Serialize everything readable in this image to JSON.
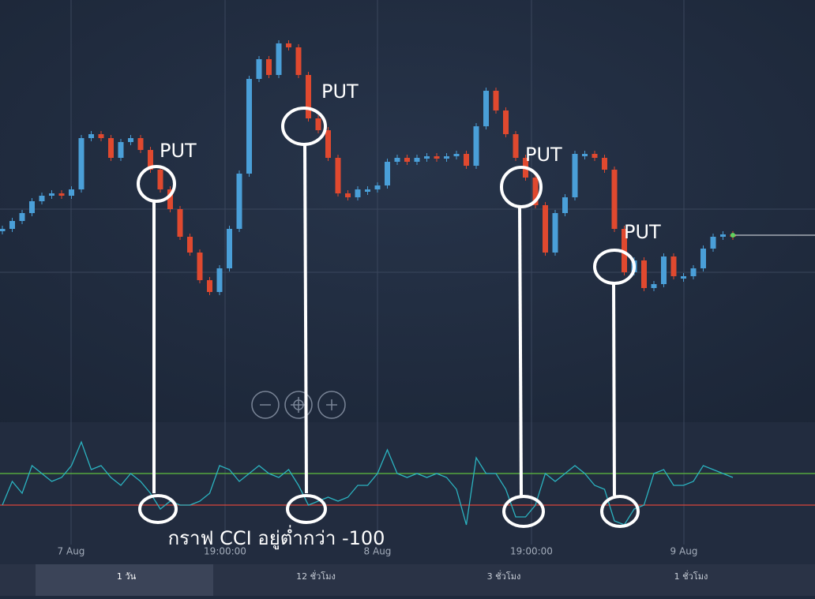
{
  "chart_data": {
    "type": "candlestick",
    "price": {
      "values": [
        110,
        120,
        130,
        145,
        152,
        155,
        152,
        160,
        225,
        230,
        225,
        200,
        220,
        225,
        210,
        185,
        160,
        135,
        100,
        80,
        45,
        30,
        60,
        110,
        180,
        300,
        325,
        305,
        345,
        340,
        305,
        250,
        235,
        200,
        155,
        150,
        160,
        160,
        165,
        195,
        200,
        195,
        200,
        202,
        200,
        202,
        205,
        190,
        240,
        285,
        260,
        230,
        200,
        175,
        140,
        80,
        130,
        150,
        205,
        205,
        200,
        185,
        110,
        55,
        70,
        35,
        40,
        75,
        50,
        50,
        60,
        85,
        100,
        103,
        102
      ],
      "up_color": "#4a9fd8",
      "down_color": "#e0492f",
      "ylim": [
        0,
        360
      ]
    },
    "cci": {
      "values": [
        -100,
        50,
        -25,
        150,
        100,
        50,
        75,
        150,
        300,
        125,
        150,
        75,
        25,
        100,
        50,
        -25,
        -125,
        -75,
        -100,
        -100,
        -75,
        -25,
        150,
        125,
        50,
        100,
        150,
        100,
        75,
        125,
        25,
        -100,
        -75,
        -50,
        -75,
        -50,
        25,
        25,
        100,
        250,
        100,
        75,
        100,
        75,
        100,
        75,
        0,
        -225,
        200,
        100,
        100,
        0,
        -175,
        -175,
        -100,
        100,
        50,
        100,
        150,
        100,
        25,
        0,
        -200,
        -225,
        -125,
        -100,
        100,
        125,
        25,
        25,
        50,
        150,
        125,
        100,
        75
      ],
      "color": "#2bb3c0",
      "ylim": [
        -400,
        400
      ],
      "levels": [
        {
          "value": 100,
          "color": "#5fbf3f"
        },
        {
          "value": -100,
          "color": "#d9443a"
        }
      ]
    },
    "x_labels": [
      "7 Aug",
      "19:00:00",
      "8 Aug",
      "19:00:00",
      "9 Aug"
    ],
    "annotations": [
      "PUT",
      "PUT",
      "PUT",
      "PUT"
    ],
    "caption": "กราฟ CCI อยู่ต่ำกว่า -100",
    "tabs": [
      "1 วัน",
      "12 ชั่วโมง",
      "3 ชั่วโมง",
      "1 ชั่วโมง"
    ]
  }
}
